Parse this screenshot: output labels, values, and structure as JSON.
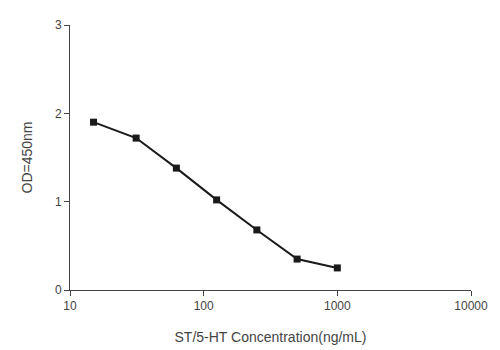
{
  "chart_data": {
    "type": "line",
    "x": [
      15,
      31.25,
      62.5,
      125,
      250,
      500,
      1000
    ],
    "values": [
      1.9,
      1.72,
      1.38,
      1.02,
      0.68,
      0.35,
      0.25
    ],
    "xlabel": "ST/5-HT Concentration(ng/mL)",
    "ylabel": "OD=450nm",
    "xlim": [
      10,
      10000
    ],
    "ylim": [
      0,
      3
    ],
    "xticks": [
      10,
      100,
      1000,
      10000
    ],
    "yticks": [
      0,
      1,
      2,
      3
    ],
    "log": "x",
    "grid": false,
    "color": "#1a1a1a",
    "marker": "square"
  }
}
